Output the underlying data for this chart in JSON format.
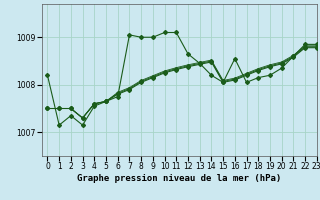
{
  "title": "Graphe pression niveau de la mer (hPa)",
  "bg_color": "#cce8f0",
  "grid_color": "#a8d4c8",
  "line_color": "#1a5c1a",
  "xlim": [
    -0.5,
    23
  ],
  "ylim": [
    1006.5,
    1009.7
  ],
  "yticks": [
    1007,
    1008,
    1009
  ],
  "xticks": [
    0,
    1,
    2,
    3,
    4,
    5,
    6,
    7,
    8,
    9,
    10,
    11,
    12,
    13,
    14,
    15,
    16,
    17,
    18,
    19,
    20,
    21,
    22,
    23
  ],
  "series": [
    [
      1008.2,
      1007.15,
      1007.35,
      1007.15,
      1007.55,
      1007.65,
      1007.75,
      1009.05,
      1009.0,
      1009.0,
      1009.1,
      1009.1,
      1008.65,
      1008.45,
      1008.2,
      1008.05,
      1008.55,
      1008.05,
      1008.15,
      1008.2,
      1008.35,
      1008.6,
      1008.85,
      1008.85
    ],
    [
      1007.5,
      1007.5,
      1007.5,
      1007.3,
      1007.6,
      1007.65,
      1007.8,
      1007.9,
      1008.05,
      1008.15,
      1008.25,
      1008.32,
      1008.38,
      1008.43,
      1008.48,
      1008.05,
      1008.1,
      1008.2,
      1008.3,
      1008.38,
      1008.44,
      1008.58,
      1008.78,
      1008.78
    ],
    [
      1007.5,
      1007.5,
      1007.5,
      1007.3,
      1007.6,
      1007.65,
      1007.82,
      1007.92,
      1008.07,
      1008.17,
      1008.27,
      1008.34,
      1008.4,
      1008.45,
      1008.5,
      1008.07,
      1008.12,
      1008.22,
      1008.32,
      1008.4,
      1008.46,
      1008.6,
      1008.8,
      1008.8
    ],
    [
      1007.5,
      1007.5,
      1007.5,
      1007.3,
      1007.6,
      1007.65,
      1007.84,
      1007.94,
      1008.09,
      1008.19,
      1008.29,
      1008.36,
      1008.42,
      1008.47,
      1008.52,
      1008.09,
      1008.14,
      1008.24,
      1008.34,
      1008.42,
      1008.48,
      1008.62,
      1008.82,
      1008.82
    ]
  ],
  "show_markers": [
    true,
    true,
    true,
    false
  ],
  "marker": "D",
  "markersize": 2.0,
  "linewidths": [
    0.8,
    0.8,
    0.7,
    0.6
  ],
  "title_fontsize": 6.5,
  "tick_fontsize": 5.5
}
